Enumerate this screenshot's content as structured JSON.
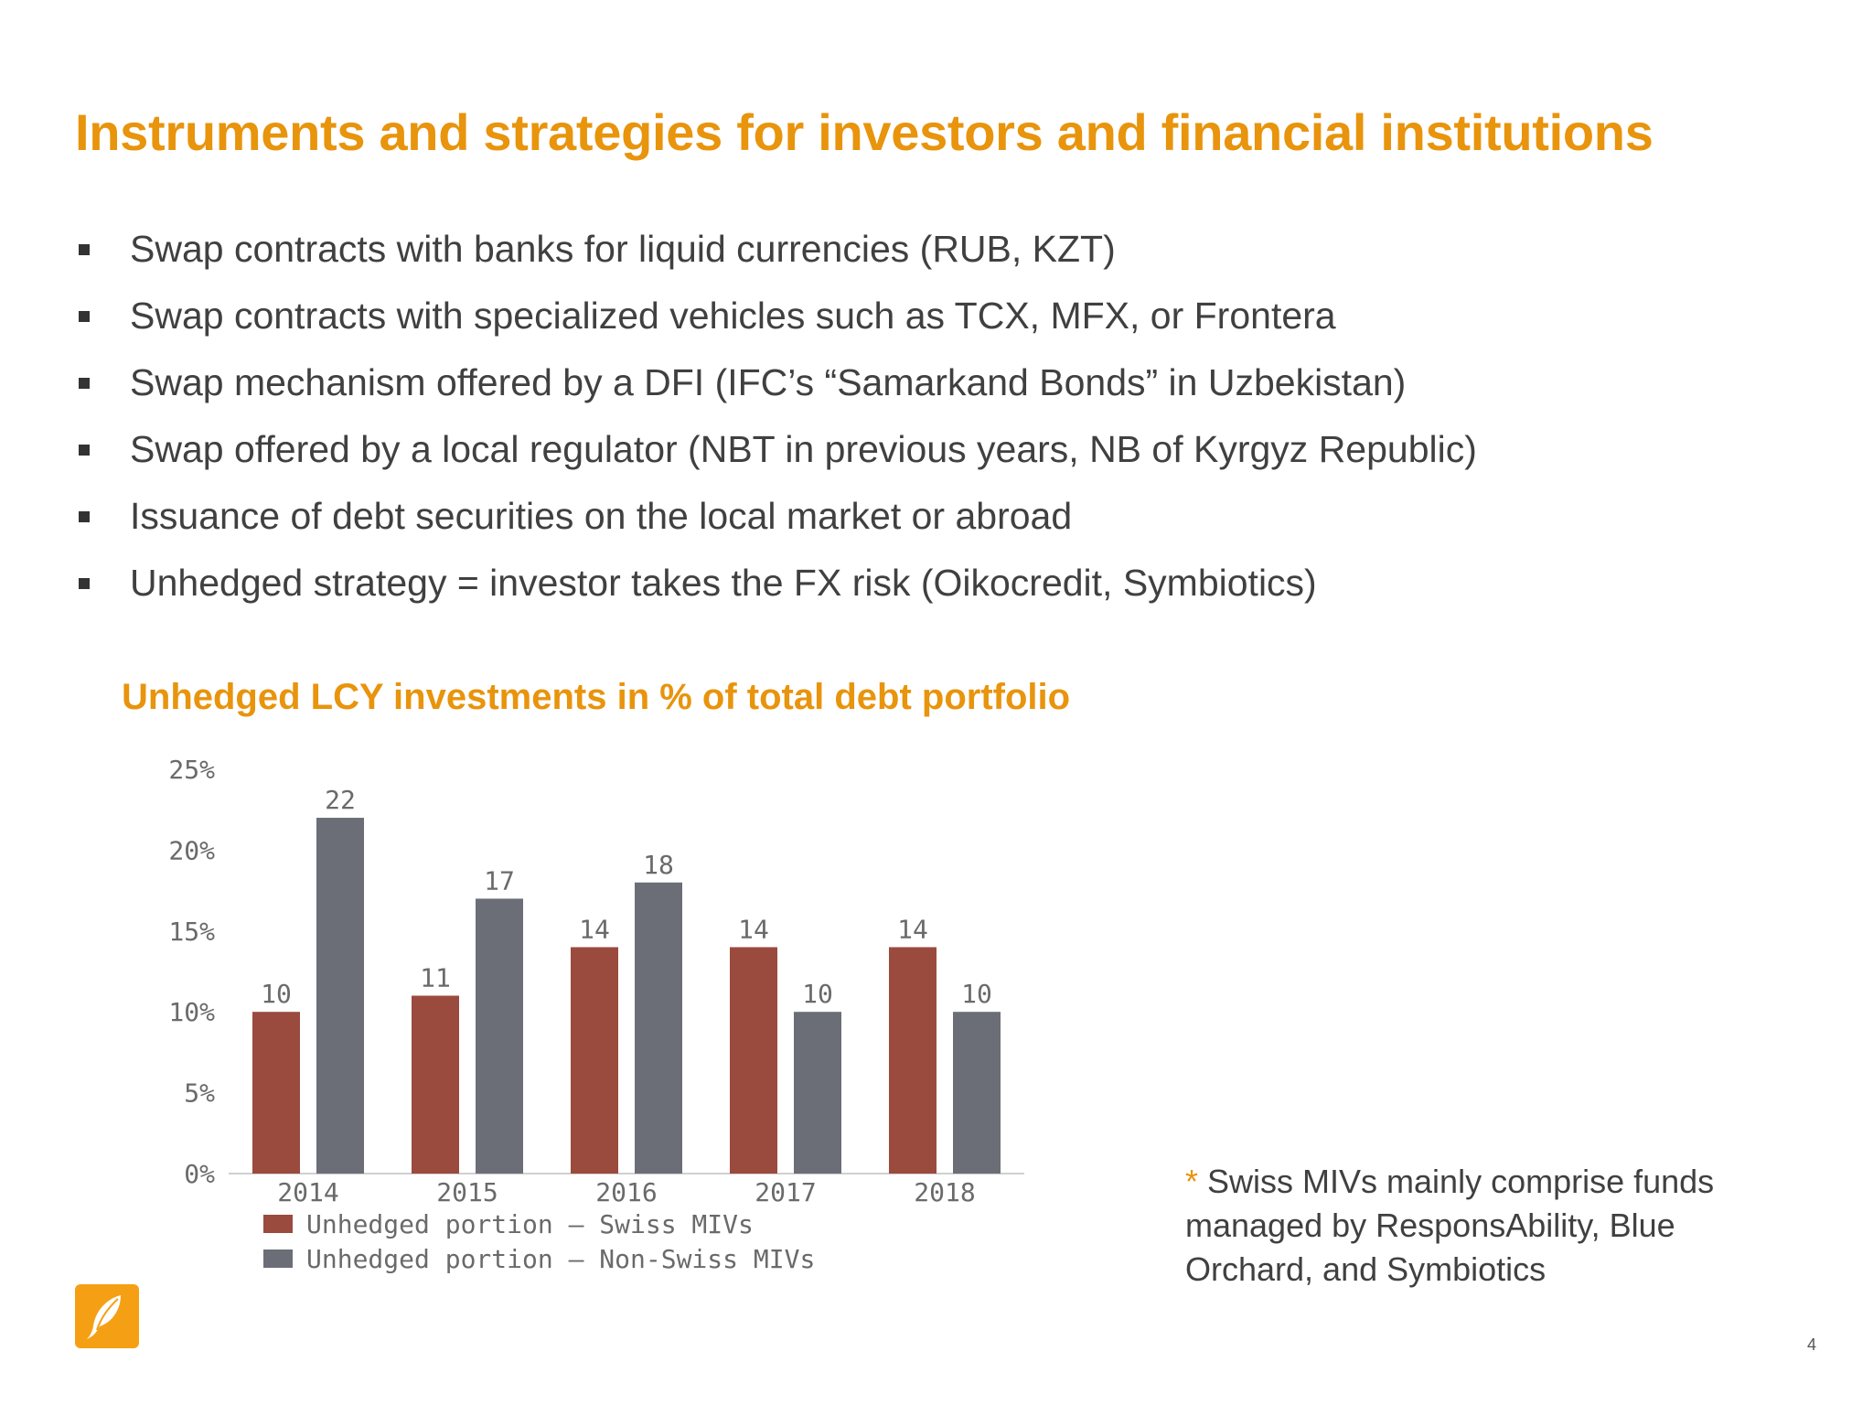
{
  "title": "Instruments and strategies for investors and financial institutions",
  "bullets": [
    "Swap contracts with banks for liquid currencies (RUB, KZT)",
    "Swap contracts with specialized vehicles such as TCX, MFX, or Frontera",
    "Swap mechanism offered by a DFI (IFC’s “Samarkand Bonds” in Uzbekistan)",
    "Swap offered by a local regulator (NBT in previous years, NB of Kyrgyz Republic)",
    "Issuance of debt securities on the local market or abroad",
    "Unhedged strategy = investor takes the FX risk (Oikocredit, Symbiotics)"
  ],
  "chart_data": {
    "type": "bar",
    "title": "Unhedged LCY investments in % of total debt portfolio",
    "categories": [
      "2014",
      "2015",
      "2016",
      "2017",
      "2018"
    ],
    "series": [
      {
        "name": "Unhedged portion – Swiss MIVs",
        "values": [
          10,
          11,
          14,
          14,
          14
        ],
        "color": "#9B4A3E"
      },
      {
        "name": "Unhedged portion – Non-Swiss MIVs",
        "values": [
          22,
          17,
          18,
          10,
          10
        ],
        "color": "#6B6E76"
      }
    ],
    "ylim": [
      0,
      25
    ],
    "yticks": [
      "0%",
      "5%",
      "10%",
      "15%",
      "20%",
      "25%"
    ],
    "grid": false,
    "legend_position": "bottom"
  },
  "footnote": {
    "marker": "*",
    "text": "Swiss MIVs mainly comprise funds managed by ResponsAbility, Blue Orchard, and Symbiotics"
  },
  "page_number": "4",
  "colors": {
    "accent": "#E8940C",
    "text": "#404040"
  },
  "logo_icon": "feather-logo-icon"
}
